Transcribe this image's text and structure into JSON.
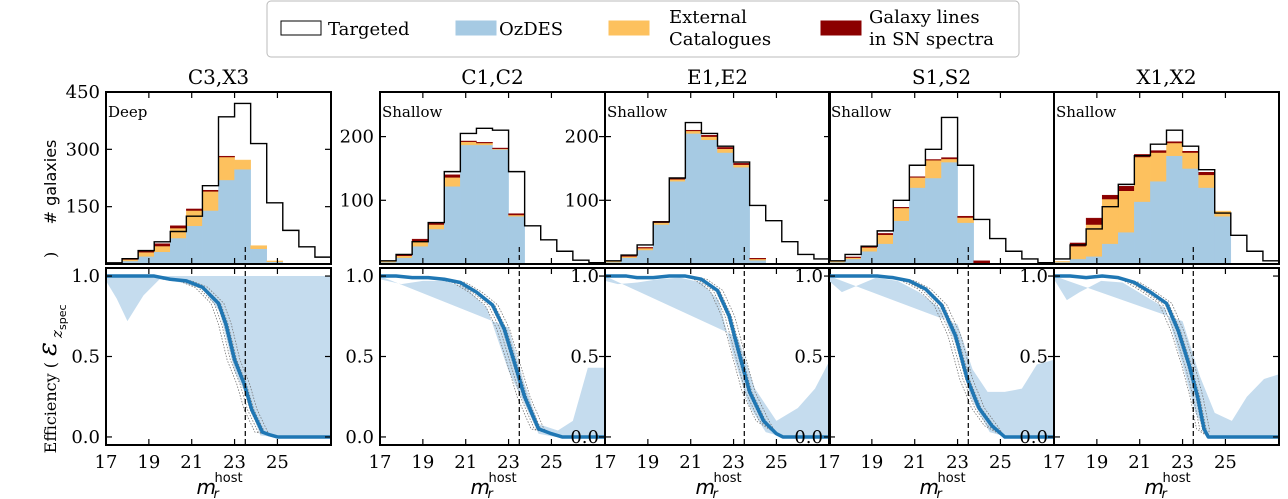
{
  "legend": {
    "placement": "top-center",
    "items": [
      {
        "label_lines": [
          "Targeted"
        ],
        "color": "#ffffff",
        "edge": "#000000"
      },
      {
        "label_lines": [
          "OzDES"
        ],
        "color": "#a6cae3",
        "edge": "#a6cae3"
      },
      {
        "label_lines": [
          "External",
          "Catalogues"
        ],
        "color": "#fdc15e",
        "edge": "#fdc15e"
      },
      {
        "label_lines": [
          "Galaxy lines",
          "in SN spectra"
        ],
        "color": "#8b0000",
        "edge": "#8b0000"
      }
    ]
  },
  "axes": {
    "ylabel_top": "# galaxies",
    "ylabel_bottom_prefix": "Efficiency (",
    "ylabel_bottom_symbol": "ε",
    "ylabel_bottom_sub": "z",
    "ylabel_bottom_subsub": "spec",
    "ylabel_bottom_suffix": ")",
    "xlabel_base": "m",
    "xlabel_sub": "r",
    "xlabel_sup": "host"
  },
  "chart_data": {
    "type": "bar",
    "bins": [
      17,
      17.75,
      18.5,
      19.25,
      20,
      20.75,
      21.5,
      22.25,
      23,
      23.75,
      24.5,
      25.25,
      26,
      26.75,
      27.5
    ],
    "x_range": [
      17,
      27.5
    ],
    "x_ticks": [
      17,
      19,
      21,
      23,
      25
    ],
    "efficiency_ylim": [
      -0.05,
      1.05
    ],
    "efficiency_ticks": [
      0.0,
      0.5,
      1.0
    ],
    "efficiency_tick_labels": [
      "0.0",
      "0.5",
      "1.0"
    ],
    "cut_magnitude": 23.5,
    "panels": [
      {
        "title": "C3,X3",
        "depth_label": "Deep",
        "ylim": [
          0,
          450
        ],
        "yticks": [
          150,
          300,
          450
        ],
        "targeted": [
          3,
          14,
          35,
          58,
          85,
          125,
          205,
          385,
          420,
          315,
          160,
          88,
          45,
          18
        ],
        "ozdes": [
          2,
          8,
          20,
          32,
          68,
          100,
          140,
          220,
          248,
          40,
          6,
          0,
          0,
          0
        ],
        "external": [
          1,
          4,
          11,
          15,
          26,
          40,
          50,
          60,
          24,
          8,
          2,
          0,
          0,
          0
        ],
        "galaxy_lines": [
          0,
          2,
          4,
          6,
          6,
          4,
          3,
          2,
          0,
          0,
          0,
          0,
          0,
          0
        ],
        "efficiency_thick": [
          [
            17,
            1.0
          ],
          [
            17.75,
            1.0
          ],
          [
            18.5,
            1.0
          ],
          [
            19.25,
            1.0
          ],
          [
            20,
            0.98
          ],
          [
            20.75,
            0.97
          ],
          [
            21.5,
            0.93
          ],
          [
            22.25,
            0.83
          ],
          [
            22.6,
            0.7
          ],
          [
            23.0,
            0.48
          ],
          [
            23.45,
            0.33
          ],
          [
            23.8,
            0.17
          ],
          [
            24.3,
            0.03
          ],
          [
            24.6,
            0.015
          ],
          [
            25.0,
            0.0
          ],
          [
            26.0,
            0.0
          ],
          [
            27.5,
            0.0
          ]
        ],
        "efficiency_band_lower": [
          [
            17,
            0.97
          ],
          [
            17.5,
            0.86
          ],
          [
            18.0,
            0.72
          ],
          [
            18.75,
            0.88
          ],
          [
            19.5,
            0.98
          ],
          [
            20.5,
            0.96
          ],
          [
            21.5,
            0.92
          ],
          [
            22.3,
            0.78
          ],
          [
            23.0,
            0.41
          ],
          [
            23.5,
            0.27
          ],
          [
            24.2,
            0.01
          ],
          [
            24.8,
            0.0
          ],
          [
            27.5,
            0.0
          ]
        ],
        "efficiency_band_upper": [
          [
            17,
            1.0
          ],
          [
            27.5,
            1.0
          ]
        ]
      },
      {
        "title": "C1,C2",
        "depth_label": "Shallow",
        "ylim": [
          0,
          270
        ],
        "yticks": [
          100,
          200
        ],
        "targeted": [
          5,
          15,
          35,
          65,
          145,
          205,
          213,
          210,
          145,
          60,
          38,
          20,
          6,
          2
        ],
        "ozdes": [
          3,
          10,
          28,
          55,
          122,
          187,
          187,
          180,
          75,
          0,
          0,
          0,
          0,
          0
        ],
        "external": [
          1,
          3,
          7,
          7,
          14,
          5,
          3,
          1,
          2,
          0,
          0,
          0,
          0,
          0
        ],
        "galaxy_lines": [
          0,
          2,
          4,
          3,
          4,
          1,
          1,
          1,
          2,
          0,
          0,
          0,
          0,
          0
        ],
        "efficiency_thick": [
          [
            17,
            1.0
          ],
          [
            17.75,
            1.0
          ],
          [
            18.5,
            0.99
          ],
          [
            19.25,
            0.99
          ],
          [
            20,
            0.98
          ],
          [
            20.75,
            0.96
          ],
          [
            21.5,
            0.9
          ],
          [
            22.25,
            0.82
          ],
          [
            22.8,
            0.67
          ],
          [
            23.3,
            0.45
          ],
          [
            23.75,
            0.25
          ],
          [
            24.4,
            0.05
          ],
          [
            25,
            0.02
          ],
          [
            25.5,
            0.0
          ],
          [
            26,
            0.0
          ],
          [
            27.5,
            0.0
          ]
        ],
        "efficiency_band_lower": [
          [
            17,
            0.98
          ],
          [
            18,
            0.95
          ],
          [
            19,
            0.97
          ],
          [
            20,
            0.97
          ],
          [
            21,
            0.93
          ],
          [
            22,
            0.8
          ],
          [
            23,
            0.41
          ],
          [
            23.8,
            0.19
          ],
          [
            24.4,
            0.02
          ],
          [
            25.2,
            0.0
          ],
          [
            27.5,
            0.0
          ]
        ],
        "efficiency_band_upper": [
          [
            17,
            1.0
          ],
          [
            23,
            0.68
          ],
          [
            23.7,
            0.35
          ],
          [
            24.4,
            0.08
          ],
          [
            25.3,
            0.04
          ],
          [
            26.0,
            0.1
          ],
          [
            26.7,
            0.43
          ],
          [
            27.5,
            0.43
          ]
        ]
      },
      {
        "title": "E1,E2",
        "depth_label": "Shallow",
        "ylim": [
          0,
          270
        ],
        "yticks": [
          100,
          200
        ],
        "targeted": [
          5,
          14,
          30,
          66,
          135,
          222,
          205,
          185,
          160,
          92,
          68,
          35,
          15,
          8
        ],
        "ozdes": [
          3,
          10,
          22,
          62,
          130,
          205,
          195,
          175,
          152,
          6,
          0,
          0,
          0,
          0
        ],
        "external": [
          1,
          2,
          3,
          3,
          3,
          4,
          5,
          6,
          4,
          2,
          0,
          0,
          0,
          0
        ],
        "galaxy_lines": [
          0,
          1,
          1,
          2,
          1,
          1,
          2,
          2,
          2,
          1,
          0,
          0,
          0,
          0
        ],
        "efficiency_thick": [
          [
            17,
            1.0
          ],
          [
            18,
            1.0
          ],
          [
            18.5,
            0.99
          ],
          [
            19.25,
            0.99
          ],
          [
            20,
            1.0
          ],
          [
            20.75,
            1.0
          ],
          [
            21.5,
            0.98
          ],
          [
            22.25,
            0.91
          ],
          [
            22.8,
            0.75
          ],
          [
            23.3,
            0.5
          ],
          [
            23.75,
            0.28
          ],
          [
            24.4,
            0.1
          ],
          [
            25.0,
            0.02
          ],
          [
            25.3,
            0.0
          ],
          [
            27.5,
            0.0
          ]
        ],
        "efficiency_band_lower": [
          [
            17,
            0.97
          ],
          [
            17.6,
            0.95
          ],
          [
            18.5,
            0.96
          ],
          [
            19.5,
            0.98
          ],
          [
            20.5,
            0.99
          ],
          [
            21.5,
            0.96
          ],
          [
            22.3,
            0.85
          ],
          [
            23,
            0.5
          ],
          [
            23.7,
            0.2
          ],
          [
            24.5,
            0.03
          ],
          [
            25.3,
            0.0
          ],
          [
            27.5,
            0.0
          ]
        ],
        "efficiency_band_upper": [
          [
            17,
            1.0
          ],
          [
            23.2,
            0.62
          ],
          [
            24,
            0.3
          ],
          [
            25.0,
            0.1
          ],
          [
            26,
            0.18
          ],
          [
            26.8,
            0.3
          ],
          [
            27.5,
            0.48
          ]
        ]
      },
      {
        "title": "S1,S2",
        "depth_label": "Shallow",
        "ylim": [
          0,
          270
        ],
        "yticks": [],
        "targeted": [
          5,
          15,
          28,
          52,
          100,
          155,
          180,
          230,
          155,
          70,
          40,
          20,
          8,
          2
        ],
        "ozdes": [
          3,
          8,
          20,
          32,
          68,
          120,
          135,
          160,
          65,
          0,
          0,
          0,
          0,
          0
        ],
        "external": [
          1,
          2,
          6,
          14,
          20,
          16,
          28,
          5,
          8,
          0,
          0,
          0,
          0,
          0
        ],
        "galaxy_lines": [
          0,
          1,
          2,
          2,
          1,
          1,
          1,
          2,
          2,
          5,
          0,
          0,
          0,
          0
        ],
        "efficiency_thick": [
          [
            17,
            1.0
          ],
          [
            17.75,
            1.0
          ],
          [
            18.5,
            1.0
          ],
          [
            19.25,
            1.0
          ],
          [
            20,
            0.99
          ],
          [
            20.75,
            0.97
          ],
          [
            21.5,
            0.92
          ],
          [
            22.25,
            0.82
          ],
          [
            22.9,
            0.63
          ],
          [
            23.45,
            0.36
          ],
          [
            24,
            0.18
          ],
          [
            24.6,
            0.07
          ],
          [
            25.2,
            0.0
          ],
          [
            27.5,
            0.0
          ]
        ],
        "efficiency_band_lower": [
          [
            17,
            0.97
          ],
          [
            17.6,
            0.9
          ],
          [
            18.3,
            0.94
          ],
          [
            19.2,
            0.99
          ],
          [
            20.2,
            0.97
          ],
          [
            21.2,
            0.9
          ],
          [
            22.2,
            0.8
          ],
          [
            23,
            0.55
          ],
          [
            23.6,
            0.25
          ],
          [
            24.5,
            0.03
          ],
          [
            25.3,
            0.0
          ],
          [
            27.5,
            0.0
          ]
        ],
        "efficiency_band_upper": [
          [
            17,
            1.0
          ],
          [
            23,
            0.7
          ],
          [
            23.7,
            0.42
          ],
          [
            24.4,
            0.28
          ],
          [
            25.2,
            0.28
          ],
          [
            26.0,
            0.3
          ],
          [
            26.7,
            0.45
          ],
          [
            27.5,
            0.48
          ]
        ]
      },
      {
        "title": "X1,X2",
        "depth_label": "Shallow",
        "ylim": [
          0,
          270
        ],
        "yticks": [],
        "targeted": [
          8,
          30,
          55,
          90,
          125,
          170,
          188,
          210,
          185,
          148,
          80,
          45,
          20,
          5
        ],
        "ozdes": [
          3,
          8,
          12,
          32,
          50,
          98,
          130,
          170,
          150,
          120,
          75,
          0,
          0,
          0
        ],
        "external": [
          1,
          20,
          50,
          70,
          65,
          70,
          45,
          20,
          25,
          20,
          8,
          0,
          0,
          0
        ],
        "galaxy_lines": [
          0,
          5,
          10,
          6,
          7,
          4,
          3,
          2,
          2,
          4,
          0,
          0,
          0,
          0
        ],
        "efficiency_thick": [
          [
            17,
            1.0
          ],
          [
            17.75,
            1.0
          ],
          [
            18.5,
            0.99
          ],
          [
            19.25,
            1.0
          ],
          [
            20,
            0.99
          ],
          [
            20.75,
            0.96
          ],
          [
            21.5,
            0.9
          ],
          [
            22.25,
            0.83
          ],
          [
            22.8,
            0.66
          ],
          [
            23.3,
            0.45
          ],
          [
            23.7,
            0.25
          ],
          [
            24.0,
            0.05
          ],
          [
            24.2,
            0.0
          ],
          [
            27.5,
            0.0
          ]
        ],
        "efficiency_band_lower": [
          [
            17,
            0.98
          ],
          [
            17.6,
            0.85
          ],
          [
            18.2,
            0.9
          ],
          [
            19.2,
            0.97
          ],
          [
            20.2,
            0.96
          ],
          [
            21.2,
            0.88
          ],
          [
            22.2,
            0.8
          ],
          [
            23,
            0.45
          ],
          [
            23.6,
            0.15
          ],
          [
            24.2,
            0.0
          ],
          [
            25,
            0.0
          ],
          [
            27.5,
            0.0
          ]
        ],
        "efficiency_band_upper": [
          [
            17,
            1.0
          ],
          [
            23,
            0.72
          ],
          [
            23.8,
            0.38
          ],
          [
            24.5,
            0.15
          ],
          [
            25.3,
            0.1
          ],
          [
            26.0,
            0.25
          ],
          [
            26.8,
            0.36
          ],
          [
            27.5,
            0.39
          ]
        ]
      }
    ]
  }
}
